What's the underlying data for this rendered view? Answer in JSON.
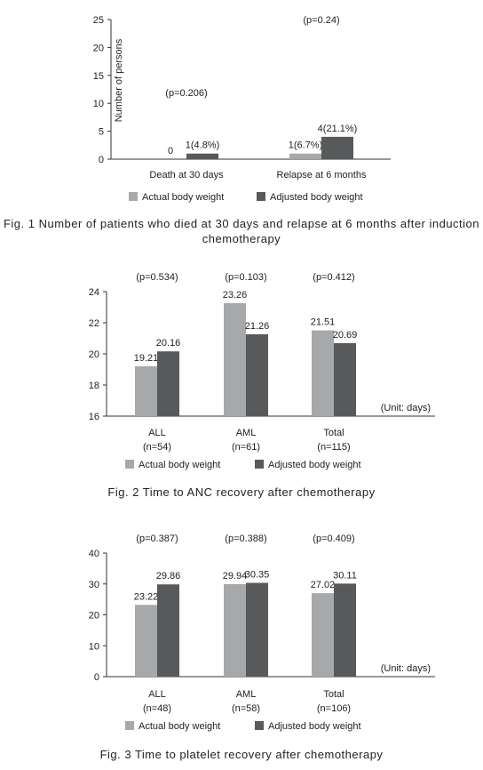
{
  "colors": {
    "actual": "#a7a8aa",
    "adjusted": "#58595b",
    "axis": "#333333"
  },
  "chart_data": [
    {
      "type": "bar",
      "caption": "Fig. 1 Number of patients who died at 30 days and relapse at 6 months after induction chemotherapy",
      "ylabel": "Number of persons",
      "ylim": [
        0,
        25
      ],
      "yticks": [
        0,
        5,
        10,
        15,
        20,
        25
      ],
      "unit": "",
      "categories": [
        "Death at 30 days",
        "Relapse at 6 months"
      ],
      "sublabels": [
        "",
        ""
      ],
      "pvalues": [
        "(p=0.206)",
        "(p=0.24)"
      ],
      "series": [
        {
          "name": "Actual body weight",
          "values": [
            0,
            1
          ],
          "labels": [
            "0",
            "1(6.7%)"
          ]
        },
        {
          "name": "Adjusted body weight",
          "values": [
            1,
            4
          ],
          "labels": [
            "1(4.8%)",
            "4(21.1%)"
          ]
        }
      ],
      "legend": "bottom"
    },
    {
      "type": "bar",
      "caption": "Fig. 2 Time to ANC recovery after chemotherapy",
      "ylabel": "",
      "ylim": [
        16,
        24
      ],
      "yticks": [
        16,
        18,
        20,
        22,
        24
      ],
      "unit": "(Unit: days)",
      "categories": [
        "ALL",
        "AML",
        "Total"
      ],
      "sublabels": [
        "(n=54)",
        "(n=61)",
        "(n=115)"
      ],
      "pvalues": [
        "(p=0.534)",
        "(p=0.103)",
        "(p=0.412)"
      ],
      "series": [
        {
          "name": "Actual body weight",
          "values": [
            19.21,
            23.26,
            21.51
          ],
          "labels": [
            "19.21",
            "23.26",
            "21.51"
          ]
        },
        {
          "name": "Adjusted body weight",
          "values": [
            20.16,
            21.26,
            20.69
          ],
          "labels": [
            "20.16",
            "21.26",
            "20.69"
          ]
        }
      ],
      "legend": "bottom"
    },
    {
      "type": "bar",
      "caption": "Fig. 3 Time to platelet recovery after chemotherapy",
      "ylabel": "",
      "ylim": [
        0,
        40
      ],
      "yticks": [
        0,
        10,
        20,
        30,
        40
      ],
      "unit": "(Unit: days)",
      "categories": [
        "ALL",
        "AML",
        "Total"
      ],
      "sublabels": [
        "(n=48)",
        "(n=58)",
        "(n=106)"
      ],
      "pvalues": [
        "(p=0.387)",
        "(p=0.388)",
        "(p=0.409)"
      ],
      "series": [
        {
          "name": "Actual body weight",
          "values": [
            23.22,
            29.94,
            27.02
          ],
          "labels": [
            "23.22",
            "29.94",
            "27.02"
          ]
        },
        {
          "name": "Adjusted body weight",
          "values": [
            29.86,
            30.35,
            30.11
          ],
          "labels": [
            "29.86",
            "30.35",
            "30.11"
          ]
        }
      ],
      "legend": "bottom"
    }
  ]
}
